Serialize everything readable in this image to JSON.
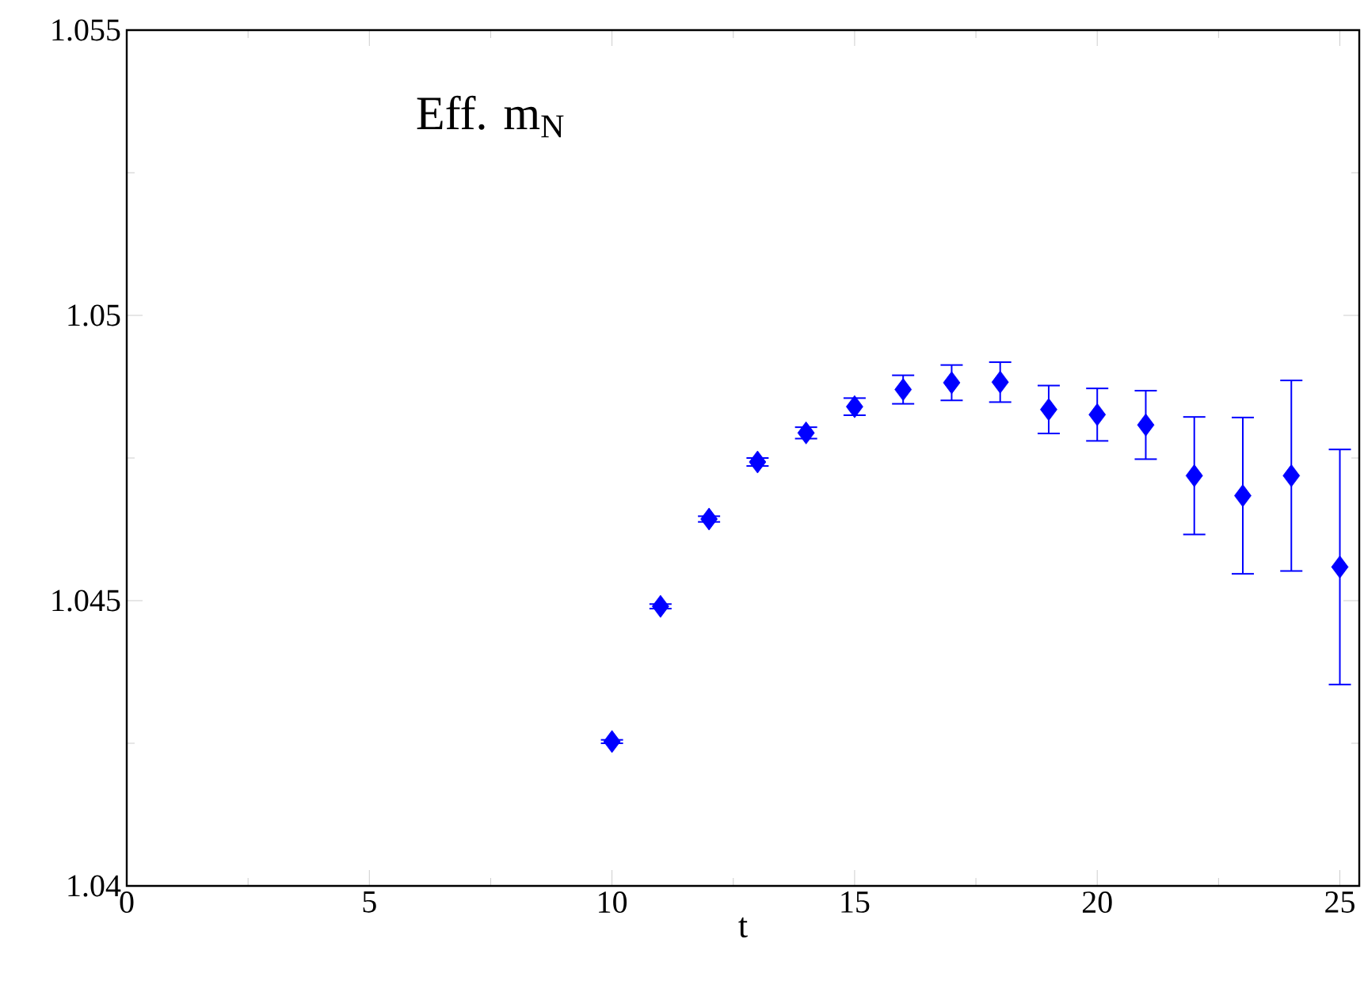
{
  "chart_data": {
    "type": "scatter",
    "annotations": [
      "Eff. m$_{N}$"
    ],
    "xlabel": "t",
    "x": [
      10,
      11,
      12,
      13,
      14,
      15,
      16,
      17,
      18,
      19,
      20,
      21,
      22,
      23,
      24,
      25
    ],
    "series": [
      {
        "color": "#0000ff",
        "marker": "diamond",
        "values": [
          1.04253,
          1.0449,
          1.04643,
          1.04743,
          1.04794,
          1.0484,
          1.0487,
          1.04882,
          1.04883,
          1.04835,
          1.04826,
          1.04808,
          1.04719,
          1.04684,
          1.04719,
          1.04559
        ],
        "errors": [
          3e-05,
          4e-05,
          5e-05,
          7e-05,
          0.0001,
          0.00015,
          0.00025,
          0.00031,
          0.00035,
          0.00042,
          0.00046,
          0.0006,
          0.00103,
          0.00137,
          0.00167,
          0.00206
        ]
      }
    ],
    "xlim": [
      0,
      25.4
    ],
    "ylim": [
      1.04,
      1.055
    ],
    "xticks": [
      0,
      5,
      10,
      15,
      20,
      25
    ],
    "yticks": [
      1.04,
      1.045,
      1.05,
      1.055
    ]
  }
}
